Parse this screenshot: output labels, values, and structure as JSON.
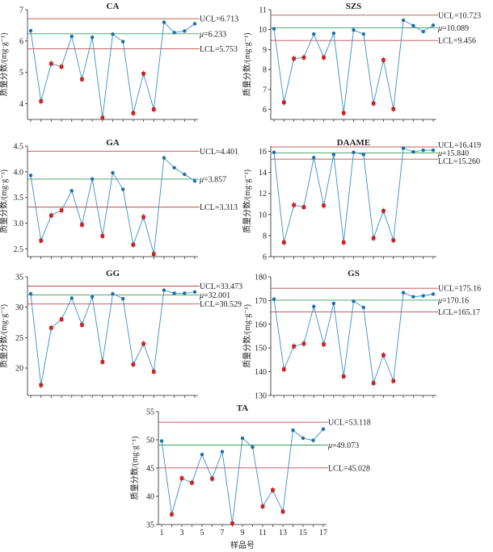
{
  "colors": {
    "line": "#3a8fc8",
    "point_in": "#1a6fa8",
    "point_out": "#cc1f1f",
    "ucl": "#b94a4a",
    "mean": "#3d9b5b",
    "lcl": "#b94a4a",
    "axis": "#222222"
  },
  "labels": {
    "ylabel": "质量分数/(mg·g⁻¹)",
    "xlabel": "样品号",
    "mu": "μ"
  },
  "chart_data": [
    {
      "type": "line",
      "title": "CA",
      "x": [
        1,
        2,
        3,
        4,
        5,
        6,
        7,
        8,
        9,
        10,
        11,
        12,
        13,
        14,
        15,
        16,
        17
      ],
      "values": [
        6.33,
        4.08,
        5.28,
        5.18,
        6.15,
        4.78,
        6.12,
        3.55,
        6.22,
        5.98,
        3.7,
        4.96,
        3.82,
        6.6,
        6.27,
        6.32,
        6.55
      ],
      "ylim": [
        3.5,
        7.0
      ],
      "yticks": [
        4.0,
        5.0,
        6.0,
        7.0
      ],
      "ucl": 6.713,
      "mean": 6.233,
      "lcl": 5.753,
      "ucl_label": "UCL=6.713",
      "mean_label": "=6.233",
      "lcl_label": "LCL=5.753"
    },
    {
      "type": "line",
      "title": "SZS",
      "x": [
        1,
        2,
        3,
        4,
        5,
        6,
        7,
        8,
        9,
        10,
        11,
        12,
        13,
        14,
        15,
        16,
        17
      ],
      "values": [
        10.04,
        6.35,
        8.55,
        8.6,
        9.78,
        8.6,
        9.82,
        5.82,
        9.98,
        9.78,
        6.3,
        8.48,
        6.02,
        10.47,
        10.2,
        9.9,
        10.22
      ],
      "ylim": [
        5.5,
        11.0
      ],
      "yticks": [
        6,
        7,
        8,
        9,
        10,
        11
      ],
      "ucl": 10.723,
      "mean": 10.089,
      "lcl": 9.456,
      "ucl_label": "UCL=10.723",
      "mean_label": "=10.089",
      "lcl_label": "LCL=9.456"
    },
    {
      "type": "line",
      "title": "GA",
      "x": [
        1,
        2,
        3,
        4,
        5,
        6,
        7,
        8,
        9,
        10,
        11,
        12,
        13,
        14,
        15,
        16,
        17
      ],
      "values": [
        3.93,
        2.66,
        3.15,
        3.25,
        3.63,
        2.97,
        3.86,
        2.75,
        3.98,
        3.66,
        2.58,
        3.12,
        2.4,
        4.27,
        4.08,
        3.95,
        3.82
      ],
      "ylim": [
        2.35,
        4.5
      ],
      "yticks": [
        2.5,
        3.0,
        3.5,
        4.0,
        4.5
      ],
      "ucl": 4.401,
      "mean": 3.857,
      "lcl": 3.313,
      "ucl_label": "UCL=4.401",
      "mean_label": "=3.857",
      "lcl_label": "LCL=3.313"
    },
    {
      "type": "line",
      "title": "DAAME",
      "x": [
        1,
        2,
        3,
        4,
        5,
        6,
        7,
        8,
        9,
        10,
        11,
        12,
        13,
        14,
        15,
        16,
        17
      ],
      "values": [
        15.9,
        7.35,
        10.9,
        10.7,
        15.4,
        10.85,
        15.7,
        7.35,
        15.9,
        15.7,
        7.75,
        10.35,
        7.55,
        16.3,
        15.95,
        16.1,
        16.1
      ],
      "ylim": [
        6.0,
        16.5
      ],
      "yticks": [
        6,
        8,
        10,
        12,
        14,
        16
      ],
      "ucl": 16.419,
      "mean": 15.84,
      "lcl": 15.26,
      "ucl_label": "UCL=16.419",
      "mean_label": "=15.840",
      "lcl_label": "LCL=15.260"
    },
    {
      "type": "line",
      "title": "GG",
      "x": [
        1,
        2,
        3,
        4,
        5,
        6,
        7,
        8,
        9,
        10,
        11,
        12,
        13,
        14,
        15,
        16,
        17
      ],
      "values": [
        32.2,
        17.2,
        26.6,
        28.0,
        31.5,
        27.1,
        31.7,
        21.0,
        32.2,
        31.4,
        20.6,
        24.0,
        19.4,
        32.8,
        32.3,
        32.3,
        32.5
      ],
      "ylim": [
        15.5,
        35.0
      ],
      "yticks": [
        20,
        25,
        30,
        35
      ],
      "ucl": 33.473,
      "mean": 32.001,
      "lcl": 30.529,
      "ucl_label": "UCL=33.473",
      "mean_label": "=32.001",
      "lcl_label": "LCL=30.529"
    },
    {
      "type": "line",
      "title": "GS",
      "x": [
        1,
        2,
        3,
        4,
        5,
        6,
        7,
        8,
        9,
        10,
        11,
        12,
        13,
        14,
        15,
        16,
        17
      ],
      "values": [
        170.6,
        141.0,
        150.7,
        151.8,
        167.5,
        151.5,
        168.8,
        138.0,
        169.7,
        167.1,
        135.2,
        147.0,
        136.1,
        173.3,
        171.6,
        172.0,
        172.7
      ],
      "ylim": [
        130,
        180
      ],
      "yticks": [
        130,
        140,
        150,
        160,
        170,
        180
      ],
      "ucl": 175.16,
      "mean": 170.16,
      "lcl": 165.17,
      "ucl_label": "UCL=175.16",
      "mean_label": "=170.16",
      "lcl_label": "LCL=165.17"
    },
    {
      "type": "line",
      "title": "TA",
      "x": [
        1,
        2,
        3,
        4,
        5,
        6,
        7,
        8,
        9,
        10,
        11,
        12,
        13,
        14,
        15,
        16,
        17
      ],
      "values": [
        49.8,
        36.8,
        43.2,
        42.4,
        47.4,
        43.1,
        47.9,
        35.2,
        50.3,
        48.7,
        38.2,
        41.1,
        37.3,
        51.7,
        50.3,
        49.9,
        51.9
      ],
      "ylim": [
        35,
        55
      ],
      "yticks": [
        35,
        40,
        45,
        50,
        55
      ],
      "xticks": [
        1,
        3,
        5,
        7,
        9,
        11,
        13,
        15,
        17
      ],
      "ucl": 53.118,
      "mean": 49.073,
      "lcl": 45.028,
      "ucl_label": "UCL=53.118",
      "mean_label": "=49.073",
      "lcl_label": "LCL=45.028"
    }
  ]
}
